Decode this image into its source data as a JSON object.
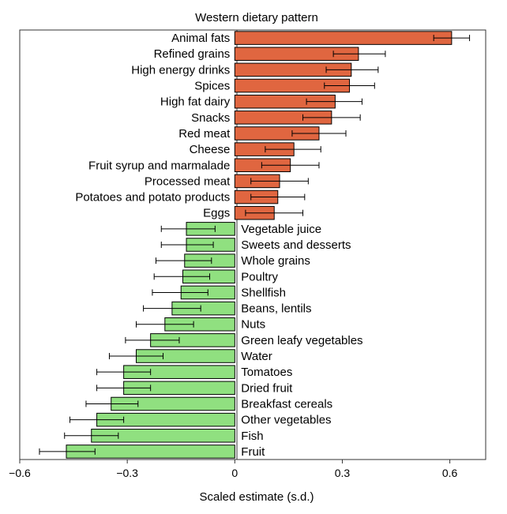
{
  "chart_data": {
    "type": "bar",
    "orientation": "horizontal",
    "title": "Western dietary pattern",
    "xlabel": "Scaled estimate (s.d.)",
    "ylabel": "",
    "xlim": [
      -0.6,
      0.7
    ],
    "xticks": [
      -0.6,
      -0.3,
      0,
      0.3,
      0.6
    ],
    "xtick_labels": [
      "−0.6",
      "−0.3",
      "0",
      "0.3",
      "0.6"
    ],
    "grid": false,
    "legend": "none",
    "colors": {
      "positive": "#e06640",
      "negative": "#90e080",
      "error_bar": "#000000",
      "bar_edge": "#000000"
    },
    "categories": [
      "Animal fats",
      "Refined grains",
      "High energy drinks",
      "Spices",
      "High fat dairy",
      "Snacks",
      "Red meat",
      "Cheese",
      "Fruit syrup and marmalade",
      "Processed meat",
      "Potatoes and potato products",
      "Eggs",
      "Vegetable juice",
      "Sweets and desserts",
      "Whole grains",
      "Poultry",
      "Shellfish",
      "Beans, lentils",
      "Nuts",
      "Green leafy vegetables",
      "Water",
      "Tomatoes",
      "Dried fruit",
      "Breakfast cereals",
      "Other vegetables",
      "Fish",
      "Fruit"
    ],
    "values": [
      0.605,
      0.345,
      0.325,
      0.32,
      0.28,
      0.27,
      0.235,
      0.165,
      0.155,
      0.125,
      0.12,
      0.11,
      -0.135,
      -0.135,
      -0.14,
      -0.145,
      -0.15,
      -0.175,
      -0.195,
      -0.235,
      -0.275,
      -0.31,
      -0.31,
      -0.345,
      -0.385,
      -0.4,
      -0.47
    ],
    "ci_low": [
      0.555,
      0.275,
      0.255,
      0.25,
      0.2,
      0.19,
      0.16,
      0.085,
      0.075,
      0.045,
      0.045,
      0.03,
      -0.205,
      -0.205,
      -0.22,
      -0.225,
      -0.23,
      -0.255,
      -0.275,
      -0.305,
      -0.35,
      -0.385,
      -0.385,
      -0.415,
      -0.46,
      -0.475,
      -0.545
    ],
    "ci_high": [
      0.655,
      0.42,
      0.4,
      0.39,
      0.355,
      0.35,
      0.31,
      0.24,
      0.235,
      0.205,
      0.195,
      0.19,
      -0.055,
      -0.06,
      -0.065,
      -0.07,
      -0.075,
      -0.095,
      -0.115,
      -0.155,
      -0.2,
      -0.235,
      -0.235,
      -0.27,
      -0.31,
      -0.325,
      -0.39
    ]
  }
}
